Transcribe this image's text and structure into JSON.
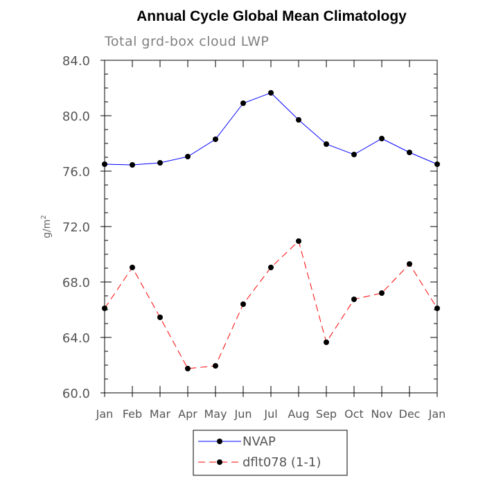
{
  "chart_data": {
    "type": "line",
    "title": "Annual Cycle Global Mean Climatology",
    "subtitle": "Total grd-box cloud LWP",
    "xlabel": "",
    "ylabel_base": "g/m",
    "ylabel_exponent": "2",
    "categories": [
      "Jan",
      "Feb",
      "Mar",
      "Apr",
      "May",
      "Jun",
      "Jul",
      "Aug",
      "Sep",
      "Oct",
      "Nov",
      "Dec",
      "Jan"
    ],
    "ylim": [
      60.0,
      84.0
    ],
    "yticks": [
      60.0,
      64.0,
      68.0,
      72.0,
      76.0,
      80.0,
      84.0
    ],
    "ytick_labels": [
      "60.0",
      "64.0",
      "68.0",
      "72.0",
      "76.0",
      "80.0",
      "84.0"
    ],
    "grid": false,
    "legend_position": "bottom",
    "series": [
      {
        "name": "NVAP",
        "color": "#0000ff",
        "line_style": "solid",
        "marker": "filled-circle",
        "values": [
          76.5,
          76.45,
          76.6,
          77.05,
          78.3,
          80.9,
          81.65,
          79.7,
          77.95,
          77.2,
          78.35,
          77.35,
          76.5
        ]
      },
      {
        "name": "dflt078 (1-1)",
        "color": "#ff0000",
        "line_style": "dashed",
        "marker": "filled-circle",
        "values": [
          66.1,
          69.05,
          65.45,
          61.75,
          61.95,
          66.4,
          69.05,
          70.95,
          63.65,
          66.75,
          67.2,
          69.3,
          66.1
        ]
      }
    ]
  }
}
